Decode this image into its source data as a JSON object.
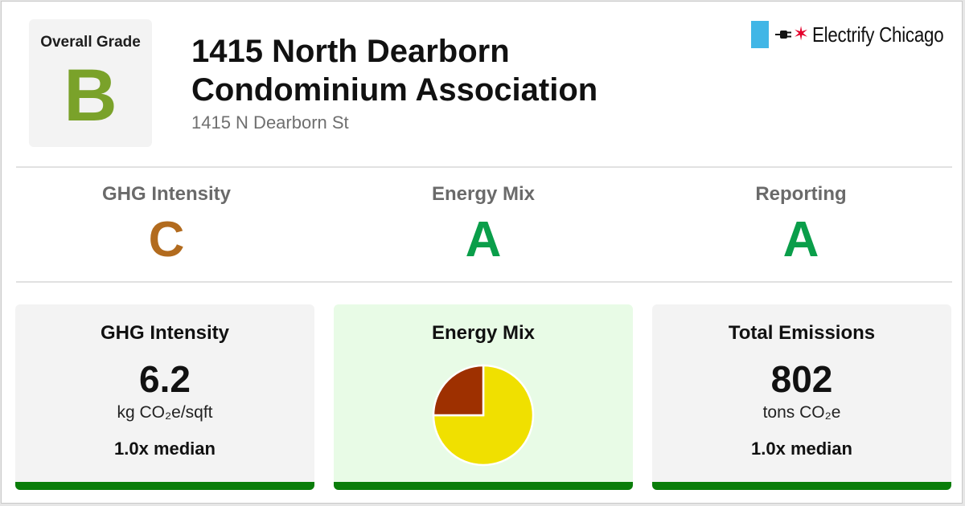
{
  "overall": {
    "label": "Overall Grade",
    "grade": "B",
    "grade_color": "#7aa22a"
  },
  "building": {
    "name": "1415 North Dearborn Condominium Association",
    "address": "1415 N Dearborn St"
  },
  "logo": {
    "text": "Electrify Chicago",
    "flag_color": "#41b6e6",
    "star_color": "#e4002b",
    "icons": [
      "flag-icon",
      "plug-icon",
      "star-icon"
    ]
  },
  "subgrades": [
    {
      "label": "GHG Intensity",
      "grade": "C",
      "color": "#b26b1e"
    },
    {
      "label": "Energy Mix",
      "grade": "A",
      "color": "#0a9e4a"
    },
    {
      "label": "Reporting",
      "grade": "A",
      "color": "#0a9e4a"
    }
  ],
  "panels": {
    "ghg": {
      "title": "GHG Intensity",
      "value": "6.2",
      "unit": "kg CO₂e/sqft",
      "median": "1.0x median"
    },
    "energy": {
      "title": "Energy Mix"
    },
    "emissions": {
      "title": "Total Emissions",
      "value": "802",
      "unit": "tons CO₂e",
      "median": "1.0x median"
    }
  },
  "colors": {
    "panel_bar": "#0a7d0a",
    "energy_panel_bg": "#e8fbe6"
  },
  "chart_data": {
    "type": "pie",
    "slices": [
      {
        "value": 75,
        "color": "#f0e000"
      },
      {
        "value": 25,
        "color": "#9e3000"
      }
    ]
  }
}
